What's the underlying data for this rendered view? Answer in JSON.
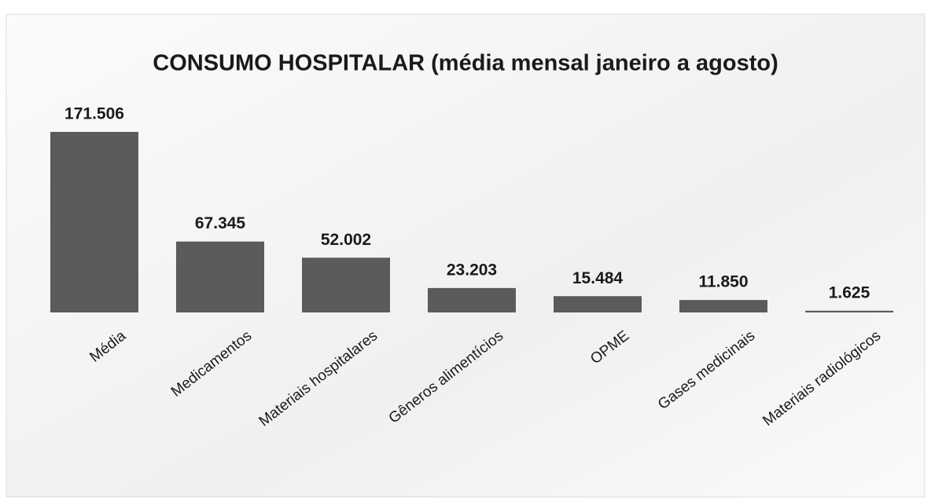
{
  "chart_data": {
    "type": "bar",
    "title": "CONSUMO HOSPITALAR (média mensal janeiro a agosto)",
    "categories": [
      "Média",
      "Medicamentos",
      "Materiais hospitalares",
      "Gêneros alimentícios",
      "OPME",
      "Gases medicinais",
      "Materiais radiológicos"
    ],
    "values": [
      171506,
      67345,
      52002,
      23203,
      15484,
      11850,
      1625
    ],
    "value_labels": [
      "171.506",
      "67.345",
      "52.002",
      "23.203",
      "15.484",
      "11.850",
      "1.625"
    ],
    "color": "#5b5b5b"
  }
}
